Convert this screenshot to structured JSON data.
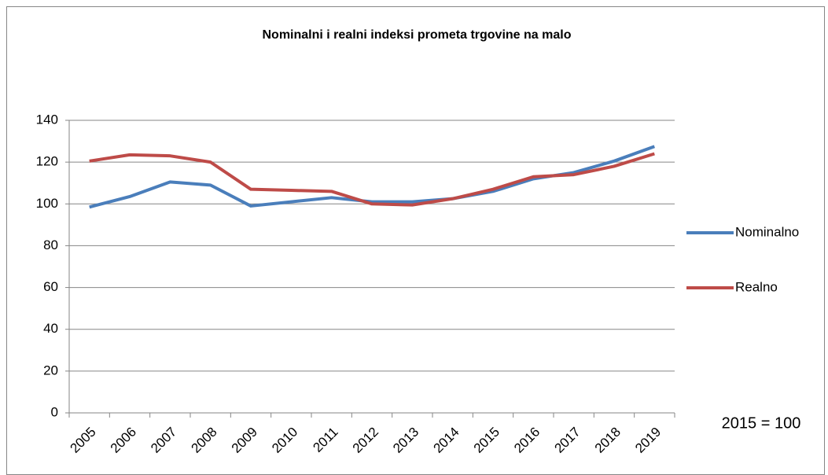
{
  "chart_data": {
    "type": "line",
    "title": "Nominalni i realni indeksi prometa trgovine na malo",
    "annotation": "2015 = 100",
    "categories": [
      "2005",
      "2006",
      "2007",
      "2008",
      "2009",
      "2010",
      "2011",
      "2012",
      "2013",
      "2014",
      "2015",
      "2016",
      "2017",
      "2018",
      "2019"
    ],
    "series": [
      {
        "name": "Nominalno",
        "color": "#4a7ebb",
        "values": [
          98.5,
          103.5,
          110.5,
          109,
          99,
          101,
          103,
          101,
          101,
          102.5,
          106,
          112,
          115,
          120.5,
          127.5
        ]
      },
      {
        "name": "Realno",
        "color": "#be4b48",
        "values": [
          120.5,
          123.5,
          123,
          120,
          107,
          106.5,
          106,
          100,
          99.5,
          102.5,
          107,
          113,
          114,
          118,
          124
        ]
      }
    ],
    "ylim": [
      0,
      140
    ],
    "yticks": [
      0,
      20,
      40,
      60,
      80,
      100,
      120,
      140
    ],
    "grid": true,
    "legend": "right"
  }
}
